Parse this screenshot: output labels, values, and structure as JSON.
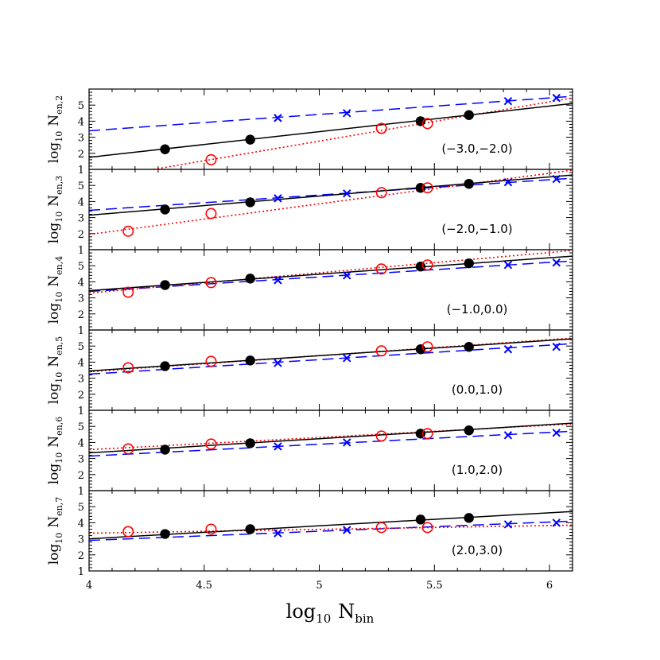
{
  "chart_data": {
    "type": "scatter",
    "xlabel": {
      "base": "log",
      "sub": "10",
      "var": "N",
      "varsub": "bin"
    },
    "xlim": [
      4.0,
      6.1
    ],
    "x_ticks": [
      "4",
      "4.5",
      "5",
      "5.5",
      "6"
    ],
    "ylim": [
      1,
      6
    ],
    "y_ticks": [
      "1",
      "2",
      "3",
      "4",
      "5"
    ],
    "panels": [
      {
        "ylabel": {
          "base": "log",
          "sub": "10",
          "var": "N",
          "varsub": "en,2"
        },
        "range_label": "(−3.0,−2.0)",
        "filled_points": {
          "x": [
            4.33,
            4.7,
            5.44,
            5.65
          ],
          "y": [
            2.25,
            2.85,
            4.0,
            4.38
          ]
        },
        "filled_fit": {
          "x": [
            4.0,
            6.1
          ],
          "y": [
            1.75,
            5.1
          ]
        },
        "open_points": {
          "x": [
            4.53,
            5.27,
            5.47
          ],
          "y": [
            1.6,
            3.55,
            3.85
          ]
        },
        "open_fit": {
          "x": [
            4.28,
            6.1
          ],
          "y": [
            1.0,
            5.45
          ]
        },
        "cross_points": {
          "x": [
            4.82,
            5.12,
            5.82,
            6.03
          ],
          "y": [
            4.2,
            4.5,
            5.25,
            5.45
          ]
        },
        "cross_fit": {
          "x": [
            4.0,
            6.1
          ],
          "y": [
            3.4,
            5.55
          ]
        }
      },
      {
        "ylabel": {
          "base": "log",
          "sub": "10",
          "var": "N",
          "varsub": "en,3"
        },
        "range_label": "(−2.0,−1.0)",
        "filled_points": {
          "x": [
            4.33,
            4.7,
            5.44,
            5.65
          ],
          "y": [
            3.5,
            3.95,
            4.85,
            5.1
          ]
        },
        "filled_fit": {
          "x": [
            4.0,
            6.1
          ],
          "y": [
            3.15,
            5.65
          ]
        },
        "open_points": {
          "x": [
            4.17,
            4.53,
            5.27,
            5.47
          ],
          "y": [
            2.15,
            3.25,
            4.55,
            4.85
          ]
        },
        "open_fit": {
          "x": [
            4.0,
            6.1
          ],
          "y": [
            1.95,
            5.95
          ]
        },
        "cross_points": {
          "x": [
            4.82,
            5.12,
            5.82,
            6.03
          ],
          "y": [
            4.2,
            4.5,
            5.2,
            5.4
          ]
        },
        "cross_fit": {
          "x": [
            4.0,
            6.1
          ],
          "y": [
            3.45,
            5.45
          ]
        }
      },
      {
        "ylabel": {
          "base": "log",
          "sub": "10",
          "var": "N",
          "varsub": "en,4"
        },
        "range_label": "(−1.0,0.0)",
        "filled_points": {
          "x": [
            4.33,
            4.7,
            5.44,
            5.65
          ],
          "y": [
            3.8,
            4.2,
            4.95,
            5.15
          ]
        },
        "filled_fit": {
          "x": [
            4.0,
            6.1
          ],
          "y": [
            3.45,
            5.6
          ]
        },
        "open_points": {
          "x": [
            4.17,
            4.53,
            5.27,
            5.47
          ],
          "y": [
            3.35,
            3.95,
            4.8,
            5.05
          ]
        },
        "open_fit": {
          "x": [
            4.0,
            6.1
          ],
          "y": [
            3.3,
            5.95
          ]
        },
        "cross_points": {
          "x": [
            4.82,
            5.12,
            5.82,
            6.03
          ],
          "y": [
            4.1,
            4.4,
            5.05,
            5.2
          ]
        },
        "cross_fit": {
          "x": [
            4.0,
            6.1
          ],
          "y": [
            3.4,
            5.3
          ]
        }
      },
      {
        "ylabel": {
          "base": "log",
          "sub": "10",
          "var": "N",
          "varsub": "en,5"
        },
        "range_label": "(0.0,1.0)",
        "filled_points": {
          "x": [
            4.33,
            4.7,
            5.44,
            5.65
          ],
          "y": [
            3.75,
            4.1,
            4.8,
            4.95
          ]
        },
        "filled_fit": {
          "x": [
            4.0,
            6.1
          ],
          "y": [
            3.45,
            5.45
          ]
        },
        "open_points": {
          "x": [
            4.17,
            4.53,
            5.27,
            5.47
          ],
          "y": [
            3.65,
            4.05,
            4.7,
            4.95
          ]
        },
        "open_fit": {
          "x": [
            4.0,
            6.1
          ],
          "y": [
            3.4,
            5.5
          ]
        },
        "cross_points": {
          "x": [
            4.82,
            5.12,
            5.82,
            6.03
          ],
          "y": [
            3.95,
            4.25,
            4.8,
            4.95
          ]
        },
        "cross_fit": {
          "x": [
            4.0,
            6.1
          ],
          "y": [
            3.25,
            5.15
          ]
        }
      },
      {
        "ylabel": {
          "base": "log",
          "sub": "10",
          "var": "N",
          "varsub": "en,6"
        },
        "range_label": "(1.0,2.0)",
        "filled_points": {
          "x": [
            4.33,
            4.7,
            5.44,
            5.65
          ],
          "y": [
            3.55,
            3.95,
            4.55,
            4.75
          ]
        },
        "filled_fit": {
          "x": [
            4.0,
            6.1
          ],
          "y": [
            3.35,
            5.2
          ]
        },
        "open_points": {
          "x": [
            4.17,
            4.53,
            5.27,
            5.47
          ],
          "y": [
            3.6,
            3.9,
            4.4,
            4.55
          ]
        },
        "open_fit": {
          "x": [
            4.0,
            6.1
          ],
          "y": [
            3.55,
            5.15
          ]
        },
        "cross_points": {
          "x": [
            4.82,
            5.12,
            5.82,
            6.03
          ],
          "y": [
            3.75,
            4.0,
            4.45,
            4.6
          ]
        },
        "cross_fit": {
          "x": [
            4.0,
            6.1
          ],
          "y": [
            3.15,
            4.7
          ]
        }
      },
      {
        "ylabel": {
          "base": "log",
          "sub": "10",
          "var": "N",
          "varsub": "en,7"
        },
        "range_label": "(2.0,3.0)",
        "filled_points": {
          "x": [
            4.33,
            4.7,
            5.44,
            5.65
          ],
          "y": [
            3.3,
            3.6,
            4.2,
            4.3
          ]
        },
        "filled_fit": {
          "x": [
            4.0,
            6.1
          ],
          "y": [
            3.0,
            4.7
          ]
        },
        "open_points": {
          "x": [
            4.17,
            4.53,
            5.27,
            5.47
          ],
          "y": [
            3.45,
            3.6,
            3.7,
            3.7
          ]
        },
        "open_fit": {
          "x": [
            4.0,
            6.1
          ],
          "y": [
            3.35,
            3.85
          ]
        },
        "cross_points": {
          "x": [
            4.82,
            5.12,
            5.82,
            6.03
          ],
          "y": [
            3.35,
            3.55,
            3.9,
            4.0
          ]
        },
        "cross_fit": {
          "x": [
            4.0,
            6.1
          ],
          "y": [
            2.9,
            4.1
          ]
        }
      }
    ],
    "colors": {
      "filled": "#000000",
      "open": "#ff0000",
      "cross": "#0000ff",
      "frame": "#000000"
    },
    "line_styles": {
      "filled": "solid",
      "open": "dotted",
      "cross": "dashed"
    },
    "grid": false
  }
}
